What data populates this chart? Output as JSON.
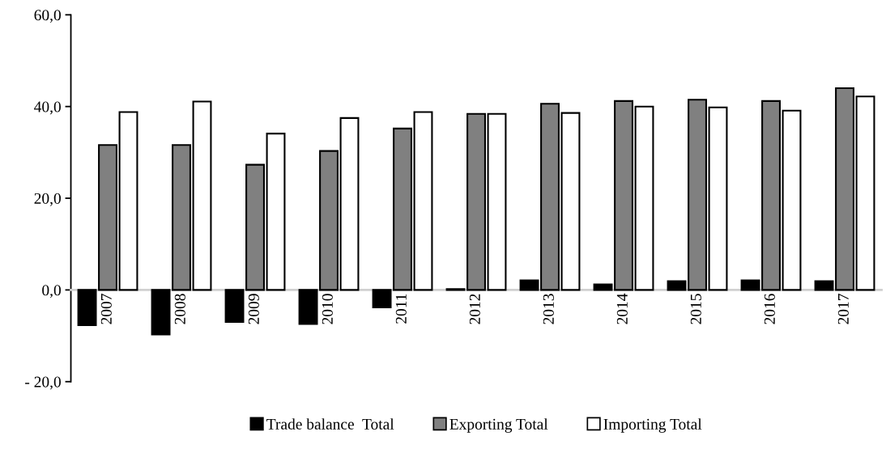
{
  "chart_data": {
    "type": "bar",
    "categories": [
      "2007",
      "2008",
      "2009",
      "2010",
      "2011",
      "2012",
      "2013",
      "2014",
      "2015",
      "2016",
      "2017"
    ],
    "series": [
      {
        "name": "Trade balance  Total",
        "color": "#000000",
        "values": [
          -7.7,
          -9.7,
          -7.0,
          -7.4,
          -3.8,
          0.2,
          2.1,
          1.2,
          1.9,
          2.1,
          1.9
        ]
      },
      {
        "name": "Exporting Total",
        "color": "#808080",
        "values": [
          31.6,
          31.6,
          27.3,
          30.3,
          35.2,
          38.4,
          40.6,
          41.2,
          41.5,
          41.2,
          44.0
        ]
      },
      {
        "name": "Importing Total",
        "color": "#ffffff",
        "values": [
          38.8,
          41.1,
          34.1,
          37.5,
          38.8,
          38.4,
          38.6,
          40.0,
          39.8,
          39.1,
          42.2
        ]
      }
    ],
    "ylim": [
      -20,
      60
    ],
    "yticks": [
      {
        "value": -20,
        "label": "- 20,0"
      },
      {
        "value": 0,
        "label": "0,0"
      },
      {
        "value": 20,
        "label": "20,0"
      },
      {
        "value": 40,
        "label": "40,0"
      },
      {
        "value": 60,
        "label": "60,0"
      }
    ],
    "grid": false,
    "legend": "bottom"
  }
}
